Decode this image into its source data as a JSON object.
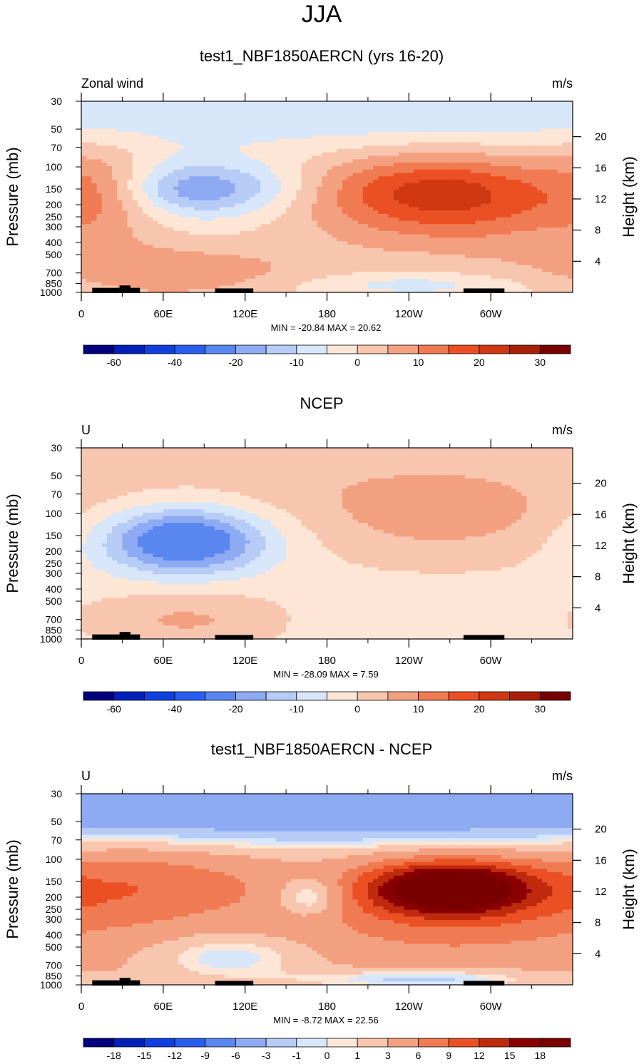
{
  "figure": {
    "title": "JJA",
    "x_ticks": [
      "0",
      "60E",
      "120E",
      "180",
      "120W",
      "60W"
    ],
    "x_tick_lon": [
      0,
      60,
      120,
      180,
      240,
      300
    ],
    "x_minor_lon": [
      30,
      90,
      150,
      210,
      270,
      330
    ],
    "x_range_lon": [
      0,
      360
    ],
    "pressure_ticks": [
      "30",
      "50",
      "70",
      "100",
      "150",
      "200",
      "250",
      "300",
      "400",
      "500",
      "700",
      "850",
      "1000"
    ],
    "pressure_values": [
      30,
      50,
      70,
      100,
      150,
      200,
      250,
      300,
      400,
      500,
      700,
      850,
      1000
    ],
    "height_ticks": [
      "4",
      "8",
      "12",
      "16",
      "20"
    ],
    "height_values_km": [
      4,
      8,
      12,
      16,
      20
    ],
    "y_label_left": "Pressure (mb)",
    "y_label_right": "Height (km)"
  },
  "colors": {
    "abs_scale": [
      "#00007f",
      "#0020b8",
      "#1040e0",
      "#2a5ef0",
      "#5a86f0",
      "#8eaaf2",
      "#b6ccf6",
      "#d8e6fa",
      "#fde6d6",
      "#f8c6ae",
      "#f3a081",
      "#f07a52",
      "#ea5024",
      "#d03812",
      "#a82008",
      "#780000"
    ],
    "diff_scale": [
      "#00007f",
      "#0020b8",
      "#1040e0",
      "#2a5ef0",
      "#5a86f0",
      "#8eaaf2",
      "#b6ccf6",
      "#d8e6fa",
      "#fde6d6",
      "#f8c6ae",
      "#f3a081",
      "#f07a52",
      "#ea5024",
      "#c02a0c",
      "#8a0000",
      "#780000"
    ],
    "topo": "#000000"
  },
  "chart_data": [
    {
      "type": "heatmap",
      "subtitle": "test1_NBF1850AERCN (yrs 16-20)",
      "left_label": "Zonal wind",
      "right_label": "m/s",
      "stats": "MIN = -20.84  MAX =  20.62",
      "min": -20.84,
      "max": 20.62,
      "colorbar_labels": [
        "-60",
        "-40",
        "-20",
        "-10",
        "0",
        "10",
        "20",
        "30"
      ],
      "colorbar_levels": [
        -70,
        -60,
        -50,
        -40,
        -30,
        -20,
        -15,
        -10,
        -5,
        0,
        5,
        10,
        15,
        20,
        25,
        30
      ],
      "background_value": -3,
      "features": [
        {
          "lon": 262,
          "p": 150,
          "dlon": 70,
          "dp": 95,
          "amp": 21
        },
        {
          "lon": 275,
          "p": 300,
          "dlon": 85,
          "dp": 250,
          "amp": 9
        },
        {
          "lon": 15,
          "p": 150,
          "dlon": 28,
          "dp": 120,
          "amp": 9
        },
        {
          "lon": 70,
          "p": 700,
          "dlon": 75,
          "dp": 350,
          "amp": 11
        },
        {
          "lon": 90,
          "p": 150,
          "dlon": 48,
          "dp": 60,
          "amp": -17
        },
        {
          "lon": 240,
          "p": 860,
          "dlon": 60,
          "dp": 130,
          "amp": -6
        },
        {
          "lon": 180,
          "p": 35,
          "dlon": 260,
          "dp": 18,
          "amp": -7
        }
      ]
    },
    {
      "type": "heatmap",
      "subtitle": "NCEP",
      "left_label": "U",
      "right_label": "m/s",
      "stats": "MIN = -28.09  MAX =   7.59",
      "min": -28.09,
      "max": 7.59,
      "colorbar_labels": [
        "-60",
        "-40",
        "-20",
        "-10",
        "0",
        "10",
        "20",
        "30"
      ],
      "colorbar_levels": [
        -70,
        -60,
        -50,
        -40,
        -30,
        -20,
        -15,
        -10,
        -5,
        0,
        5,
        10,
        15,
        20,
        25,
        30
      ],
      "background_value": -2,
      "features": [
        {
          "lon": 75,
          "p": 165,
          "dlon": 42,
          "dp": 85,
          "amp": -27
        },
        {
          "lon": 265,
          "p": 110,
          "dlon": 75,
          "dp": 90,
          "amp": 8
        },
        {
          "lon": 185,
          "p": 50,
          "dlon": 200,
          "dp": 40,
          "amp": 4
        },
        {
          "lon": 80,
          "p": 700,
          "dlon": 55,
          "dp": 300,
          "amp": 8
        },
        {
          "lon": 220,
          "p": 700,
          "dlon": 80,
          "dp": 250,
          "amp": -2
        }
      ]
    },
    {
      "type": "heatmap",
      "subtitle": "test1_NBF1850AERCN - NCEP",
      "left_label": "U",
      "right_label": "m/s",
      "stats": "MIN =  -8.72  MAX =  22.56",
      "min": -8.72,
      "max": 22.56,
      "colorbar_labels": [
        "-18",
        "-15",
        "-12",
        "-9",
        "-6",
        "-3",
        "-1",
        "0",
        "1",
        "3",
        "6",
        "9",
        "12",
        "15",
        "18"
      ],
      "colorbar_levels": [
        -21,
        -18,
        -15,
        -12,
        -9,
        -6,
        -3,
        -1,
        0,
        1,
        3,
        6,
        9,
        12,
        15,
        18
      ],
      "background_value": 3,
      "features": [
        {
          "lon": 270,
          "p": 170,
          "dlon": 40,
          "dp": 65,
          "amp": 20
        },
        {
          "lon": 270,
          "p": 250,
          "dlon": 80,
          "dp": 220,
          "amp": 5
        },
        {
          "lon": 50,
          "p": 160,
          "dlon": 60,
          "dp": 110,
          "amp": 5
        },
        {
          "lon": 180,
          "p": 40,
          "dlon": 400,
          "dp": 25,
          "amp": -9
        },
        {
          "lon": 168,
          "p": 200,
          "dlon": 18,
          "dp": 60,
          "amp": -6
        },
        {
          "lon": 110,
          "p": 600,
          "dlon": 40,
          "dp": 200,
          "amp": -4
        },
        {
          "lon": 250,
          "p": 900,
          "dlon": 60,
          "dp": 120,
          "amp": -5
        }
      ]
    }
  ]
}
